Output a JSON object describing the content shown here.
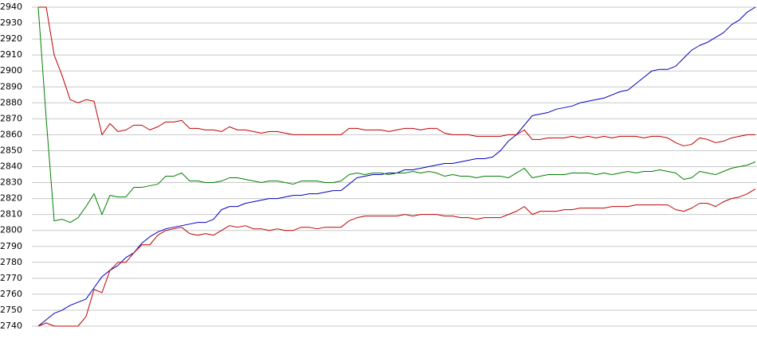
{
  "chart_data": {
    "type": "line",
    "ylim": [
      2740,
      2940
    ],
    "yticks": [
      2740,
      2750,
      2760,
      2770,
      2780,
      2790,
      2800,
      2810,
      2820,
      2830,
      2840,
      2850,
      2860,
      2870,
      2880,
      2890,
      2900,
      2910,
      2920,
      2930,
      2940
    ],
    "grid": true,
    "series": [
      {
        "color": "#0000c0",
        "values": [
          2740,
          2744,
          2748,
          2750,
          2753,
          2755,
          2757,
          2764,
          2771,
          2775,
          2778,
          2783,
          2786,
          2792,
          2796,
          2799,
          2801,
          2802,
          2803,
          2804,
          2805,
          2805,
          2807,
          2813,
          2815,
          2815,
          2817,
          2818,
          2819,
          2820,
          2820,
          2821,
          2822,
          2822,
          2823,
          2823,
          2824,
          2825,
          2825,
          2829,
          2833,
          2834,
          2835,
          2835,
          2836,
          2836,
          2838,
          2838,
          2839,
          2840,
          2841,
          2842,
          2842,
          2843,
          2844,
          2845,
          2845,
          2846,
          2850,
          2856,
          2860,
          2866,
          2872,
          2873,
          2874,
          2876,
          2877,
          2878,
          2880,
          2881,
          2882,
          2883,
          2885,
          2887,
          2888,
          2892,
          2896,
          2900,
          2901,
          2901,
          2903,
          2908,
          2913,
          2916,
          2918,
          2921,
          2924,
          2929,
          2932,
          2937,
          2940
        ]
      },
      {
        "color": "#008000",
        "values": [
          2940,
          2870,
          2806,
          2807,
          2805,
          2808,
          2815,
          2823,
          2810,
          2822,
          2821,
          2821,
          2827,
          2827,
          2828,
          2829,
          2834,
          2834,
          2836,
          2831,
          2831,
          2830,
          2830,
          2831,
          2833,
          2833,
          2832,
          2831,
          2830,
          2831,
          2831,
          2830,
          2829,
          2831,
          2831,
          2831,
          2830,
          2830,
          2831,
          2835,
          2836,
          2835,
          2836,
          2836,
          2835,
          2836,
          2836,
          2837,
          2836,
          2837,
          2836,
          2834,
          2835,
          2834,
          2834,
          2833,
          2834,
          2834,
          2834,
          2833,
          2836,
          2839,
          2833,
          2834,
          2835,
          2835,
          2835,
          2836,
          2836,
          2836,
          2835,
          2836,
          2835,
          2836,
          2837,
          2836,
          2837,
          2837,
          2838,
          2837,
          2836,
          2832,
          2833,
          2837,
          2836,
          2835,
          2837,
          2839,
          2840,
          2841,
          2843
        ]
      },
      {
        "color": "#c00000",
        "values": [
          2940,
          2940,
          2910,
          2897,
          2882,
          2880,
          2882,
          2881,
          2860,
          2867,
          2862,
          2863,
          2866,
          2866,
          2863,
          2865,
          2868,
          2868,
          2869,
          2864,
          2864,
          2863,
          2863,
          2862,
          2865,
          2863,
          2863,
          2862,
          2861,
          2862,
          2862,
          2861,
          2860,
          2860,
          2860,
          2860,
          2860,
          2860,
          2860,
          2864,
          2864,
          2863,
          2863,
          2863,
          2862,
          2863,
          2864,
          2864,
          2863,
          2864,
          2864,
          2861,
          2860,
          2860,
          2860,
          2859,
          2859,
          2859,
          2859,
          2860,
          2860,
          2863,
          2857,
          2857,
          2858,
          2858,
          2858,
          2859,
          2858,
          2859,
          2858,
          2859,
          2858,
          2859,
          2859,
          2859,
          2858,
          2859,
          2859,
          2858,
          2855,
          2853,
          2854,
          2858,
          2857,
          2855,
          2856,
          2858,
          2859,
          2860,
          2860
        ]
      },
      {
        "color": "#c00000",
        "values": [
          2740,
          2742,
          2740,
          2740,
          2740,
          2740,
          2746,
          2763,
          2761,
          2775,
          2780,
          2780,
          2786,
          2791,
          2791,
          2797,
          2800,
          2801,
          2802,
          2798,
          2797,
          2798,
          2797,
          2800,
          2803,
          2802,
          2803,
          2801,
          2801,
          2800,
          2801,
          2800,
          2800,
          2802,
          2802,
          2801,
          2802,
          2802,
          2802,
          2806,
          2808,
          2809,
          2809,
          2809,
          2809,
          2809,
          2810,
          2809,
          2810,
          2810,
          2810,
          2809,
          2809,
          2808,
          2808,
          2807,
          2808,
          2808,
          2808,
          2810,
          2812,
          2815,
          2810,
          2812,
          2812,
          2812,
          2813,
          2813,
          2814,
          2814,
          2814,
          2814,
          2815,
          2815,
          2815,
          2816,
          2816,
          2816,
          2816,
          2816,
          2813,
          2812,
          2814,
          2817,
          2817,
          2815,
          2818,
          2820,
          2821,
          2823,
          2826
        ]
      }
    ]
  }
}
